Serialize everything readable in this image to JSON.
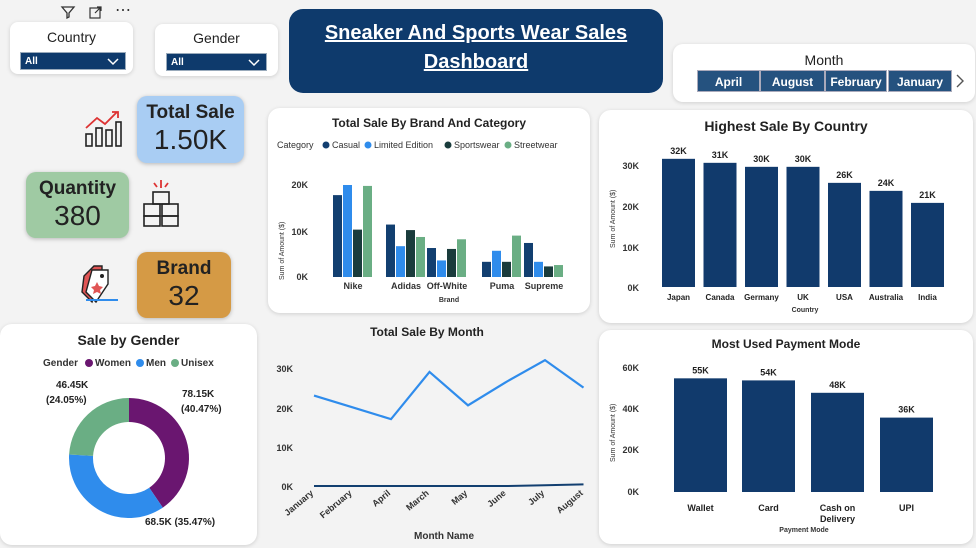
{
  "toolbar": {
    "filter_icon": "filter-icon",
    "focus_icon": "focus-mode-icon",
    "more_icon": "more-options-icon",
    "more_glyph": "⋯"
  },
  "slicers": {
    "country": {
      "label": "Country",
      "value": "All"
    },
    "gender": {
      "label": "Gender",
      "value": "All"
    },
    "month": {
      "label": "Month",
      "options": [
        "April",
        "August",
        "February",
        "January"
      ]
    }
  },
  "title": {
    "line1": "Sneaker And Sports Wear Sales",
    "line2": "Dashboard"
  },
  "kpis": {
    "total_sale": {
      "label": "Total Sale",
      "value": "1.50K",
      "color": "#a9cdf3"
    },
    "quantity": {
      "label": "Quantity",
      "value": "380",
      "color": "#9fcaa3"
    },
    "brand": {
      "label": "Brand",
      "value": "32",
      "color": "#d59a45"
    }
  },
  "colors": {
    "navy": "#113a6c",
    "casual": "#123f70",
    "limited": "#2f8cec",
    "sportswear": "#1a3c3c",
    "streetwear": "#6aae84",
    "women": "#6a1670",
    "men": "#2f8cec",
    "unisex": "#6aae84",
    "line": "#2f8cec"
  },
  "charts": {
    "brand_category": {
      "title": "Total Sale By Brand And Category",
      "legend_title": "Category",
      "ylabel": "Sum of Amount ($)",
      "xlabel": "Brand",
      "yticks": [
        "20K",
        "10K",
        "0K"
      ]
    },
    "country": {
      "title": "Highest Sale By Country",
      "ylabel": "Sum of Amount ($)",
      "xlabel": "Country",
      "yticks": [
        "30K",
        "20K",
        "10K",
        "0K"
      ]
    },
    "gender": {
      "title": "Sale by Gender",
      "legend_title": "Gender",
      "labels": [
        "78.15K",
        "(40.47%)",
        "68.5K (35.47%)",
        "46.45K",
        "(24.05%)"
      ]
    },
    "month": {
      "title": "Total Sale By Month",
      "xlabel": "Month Name",
      "yticks": [
        "30K",
        "20K",
        "10K",
        "0K"
      ]
    },
    "payment": {
      "title": "Most Used Payment Mode",
      "ylabel": "Sum of Amount ($)",
      "xlabel": "Payment Mode",
      "yticks": [
        "60K",
        "40K",
        "20K",
        "0K"
      ]
    }
  },
  "chart_data": [
    {
      "type": "bar",
      "title": "Total Sale By Brand And Category",
      "categories": [
        "Nike",
        "Adidas",
        "Off-White",
        "Puma",
        "Supreme"
      ],
      "series": [
        {
          "name": "Casual",
          "values": [
            17800,
            11400,
            6300,
            3300,
            7400
          ]
        },
        {
          "name": "Limited Edition",
          "values": [
            20000,
            6700,
            3600,
            5700,
            3300
          ]
        },
        {
          "name": "Sportswear",
          "values": [
            10300,
            10200,
            6100,
            3300,
            2300
          ]
        },
        {
          "name": "Streetwear",
          "values": [
            19800,
            8700,
            8200,
            9000,
            2600
          ]
        }
      ],
      "xlabel": "Brand",
      "ylabel": "Sum of Amount ($)",
      "ylim": [
        0,
        22000
      ]
    },
    {
      "type": "bar",
      "title": "Highest Sale By Country",
      "categories": [
        "Japan",
        "Canada",
        "Germany",
        "UK",
        "USA",
        "Australia",
        "India"
      ],
      "values": [
        32000,
        31000,
        30000,
        30000,
        26000,
        24000,
        21000
      ],
      "data_labels": [
        "32K",
        "31K",
        "30K",
        "30K",
        "26K",
        "24K",
        "21K"
      ],
      "xlabel": "Country",
      "ylabel": "Sum of Amount ($)",
      "ylim": [
        0,
        33000
      ]
    },
    {
      "type": "pie",
      "title": "Sale by Gender",
      "categories": [
        "Women",
        "Men",
        "Unisex"
      ],
      "values": [
        78150,
        68500,
        46450
      ]
    },
    {
      "type": "line",
      "title": "Total Sale By Month",
      "categories": [
        "January",
        "February",
        "April",
        "March",
        "May",
        "June",
        "July",
        "August"
      ],
      "series": [
        {
          "name": "Total Sale",
          "values": [
            23000,
            20000,
            17000,
            29000,
            20500,
            26500,
            32000,
            25000
          ]
        },
        {
          "name": "",
          "values": [
            0,
            0,
            0,
            0,
            0,
            0,
            200,
            400
          ]
        }
      ],
      "xlabel": "Month Name",
      "ylim": [
        0,
        35000
      ]
    },
    {
      "type": "bar",
      "title": "Most Used Payment Mode",
      "categories": [
        "Wallet",
        "Card",
        "Cash on Delivery",
        "UPI"
      ],
      "values": [
        55000,
        54000,
        48000,
        36000
      ],
      "data_labels": [
        "55K",
        "54K",
        "48K",
        "36K"
      ],
      "xlabel": "Payment Mode",
      "ylabel": "Sum of Amount ($)",
      "ylim": [
        0,
        60000
      ]
    }
  ]
}
